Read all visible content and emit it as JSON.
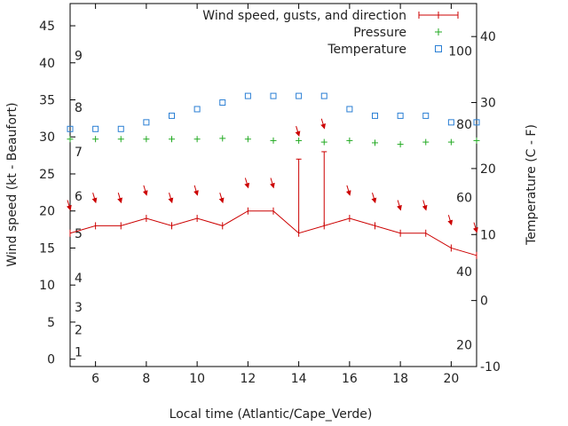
{
  "chart_data": {
    "type": "line",
    "xlabel": "Local time (Atlantic/Cape_Verde)",
    "ylabel_left": "Wind speed (kt - Beaufort)",
    "ylabel_right": "Temperature (C - F)",
    "xlim": [
      5,
      21
    ],
    "ylim_left": [
      -1,
      48
    ],
    "ylim_right": [
      -10,
      45
    ],
    "x_ticks": [
      6,
      8,
      10,
      12,
      14,
      16,
      18,
      20
    ],
    "y_left_ticks": [
      0,
      5,
      10,
      15,
      20,
      25,
      30,
      35,
      40,
      45
    ],
    "y_right_ticks": [
      -10,
      0,
      10,
      20,
      30,
      40
    ],
    "beaufort_labels": [
      {
        "label": "1",
        "kt": 1
      },
      {
        "label": "2",
        "kt": 4
      },
      {
        "label": "3",
        "kt": 7
      },
      {
        "label": "4",
        "kt": 11
      },
      {
        "label": "5",
        "kt": 17
      },
      {
        "label": "6",
        "kt": 22
      },
      {
        "label": "7",
        "kt": 28
      },
      {
        "label": "8",
        "kt": 34
      },
      {
        "label": "9",
        "kt": 41
      }
    ],
    "fahrenheit_labels": [
      {
        "label": "20",
        "celsius": -6.7
      },
      {
        "label": "40",
        "celsius": 4.4
      },
      {
        "label": "60",
        "celsius": 15.6
      },
      {
        "label": "80",
        "celsius": 26.7
      },
      {
        "label": "100",
        "celsius": 37.8
      }
    ],
    "legend": [
      "Wind speed, gusts, and direction",
      "Pressure",
      "Temperature"
    ],
    "legend_position": "top-right",
    "colors": {
      "wind": "#cc0000",
      "pressure": "#22aa22",
      "temperature": "#2a7fd4",
      "axis": "#000000"
    },
    "hours": [
      5,
      6,
      7,
      8,
      9,
      10,
      11,
      12,
      13,
      14,
      15,
      16,
      17,
      18,
      19,
      20,
      21
    ],
    "wind_speed": [
      17,
      18,
      18,
      19,
      18,
      19,
      18,
      20,
      20,
      17,
      18,
      19,
      18,
      17,
      17,
      15,
      14
    ],
    "gusts": [
      null,
      null,
      null,
      null,
      null,
      null,
      null,
      null,
      null,
      27,
      28,
      null,
      null,
      null,
      null,
      null,
      null
    ],
    "pressure_left_axis": [
      29.7,
      29.7,
      29.7,
      29.7,
      29.7,
      29.7,
      29.8,
      29.7,
      29.5,
      29.5,
      29.3,
      29.5,
      29.2,
      29.0,
      29.3,
      29.3,
      29.5
    ],
    "temperature_c": [
      26,
      26,
      26,
      27,
      28,
      29,
      30,
      31,
      31,
      31,
      31,
      29,
      28,
      28,
      28,
      27,
      27
    ],
    "wind_direction_arrow_y": [
      20.5,
      21.5,
      21.5,
      22.5,
      21.5,
      22.5,
      21.5,
      23.5,
      23.5,
      30.5,
      31.5,
      22.5,
      21.5,
      20.5,
      20.5,
      18.5,
      17.5
    ]
  }
}
